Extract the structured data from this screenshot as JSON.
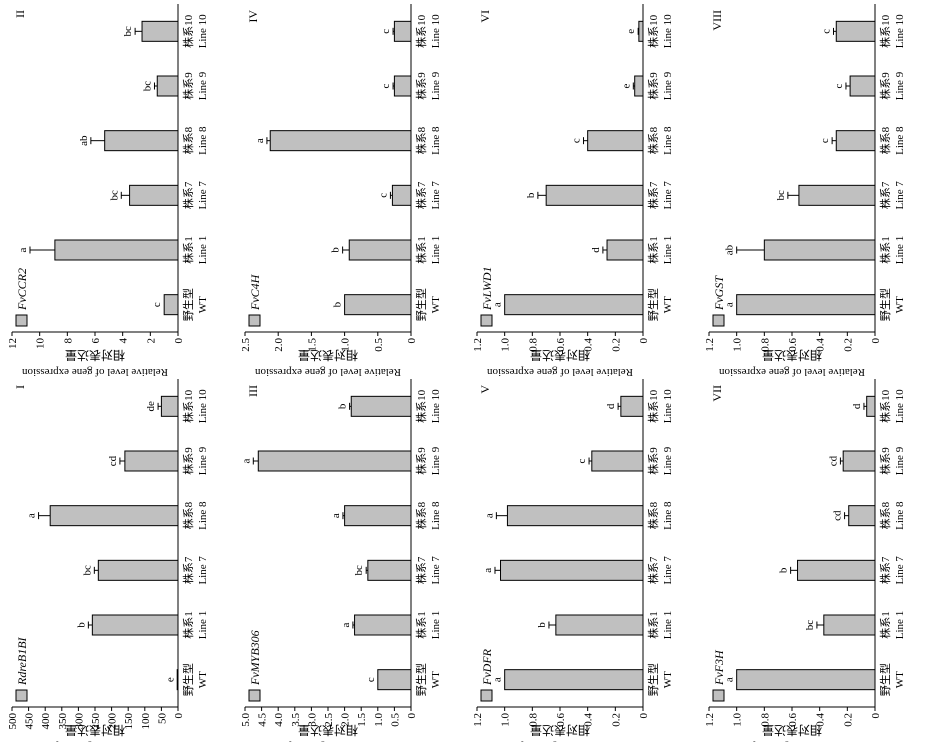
{
  "style": {
    "bar_fill": "#c0c0c0",
    "bar_stroke": "#000000",
    "axis_color": "#000000"
  },
  "chart_data": [
    {
      "type": "bar",
      "panel": "I",
      "categories": [
        [
          "野生型",
          "WT"
        ],
        [
          "株系1",
          "Line 1"
        ],
        [
          "株系7",
          "Line 7"
        ],
        [
          "株系8",
          "Line 8"
        ],
        [
          "株系9",
          "Line 9"
        ],
        [
          "株系10",
          "Line 10"
        ]
      ],
      "series": [
        {
          "name": "RdreB1BI",
          "values": [
            1,
            258,
            240,
            385,
            160,
            50
          ],
          "errors": [
            0,
            12,
            12,
            35,
            15,
            10
          ],
          "letters": [
            "e",
            "b",
            "bc",
            "a",
            "cd",
            "de"
          ]
        }
      ],
      "ylabel": "Relative level of gene expression",
      "ylabel_cn": "相对表达量",
      "ylim": [
        0,
        500
      ],
      "yticks": [
        0,
        50,
        100,
        150,
        200,
        250,
        300,
        350,
        400,
        450,
        500
      ]
    },
    {
      "type": "bar",
      "panel": "II",
      "categories": [
        [
          "野生型",
          "WT"
        ],
        [
          "株系1",
          "Line 1"
        ],
        [
          "株系7",
          "Line 7"
        ],
        [
          "株系8",
          "Line 8"
        ],
        [
          "株系9",
          "Line 9"
        ],
        [
          "株系10",
          "Line 10"
        ]
      ],
      "series": [
        {
          "name": "FvCCR2",
          "values": [
            1.0,
            8.9,
            3.5,
            5.3,
            1.5,
            2.6
          ],
          "errors": [
            0,
            1.8,
            0.6,
            1.0,
            0.2,
            0.5
          ],
          "letters": [
            "c",
            "a",
            "bc",
            "ab",
            "bc",
            "bc"
          ]
        }
      ],
      "ylabel": "Relative level of gene expression",
      "ylabel_cn": "相对表达量",
      "ylim": [
        0,
        12
      ],
      "yticks": [
        0,
        2,
        4,
        6,
        8,
        10,
        12
      ]
    },
    {
      "type": "bar",
      "panel": "III",
      "categories": [
        [
          "野生型",
          "WT"
        ],
        [
          "株系1",
          "Line 1"
        ],
        [
          "株系7",
          "Line 7"
        ],
        [
          "株系8",
          "Line 8"
        ],
        [
          "株系9",
          "Line 9"
        ],
        [
          "株系10",
          "Line 10"
        ]
      ],
      "series": [
        {
          "name": "FvMYB306",
          "values": [
            1.0,
            1.7,
            1.3,
            2.0,
            4.6,
            1.8
          ],
          "errors": [
            0,
            0.05,
            0.05,
            0.05,
            0.15,
            0.05
          ],
          "letters": [
            "c",
            "a",
            "bc",
            "a",
            "a",
            "b"
          ]
        }
      ],
      "ylabel": "Relative level of gene expression",
      "ylabel_cn": "相对表达量",
      "ylim": [
        0,
        5.0
      ],
      "yticks": [
        0,
        0.5,
        1.0,
        1.5,
        2.0,
        2.5,
        3.0,
        3.5,
        4.0,
        4.5,
        5.0
      ],
      "ytick_labels": [
        "0",
        "0.5",
        "1.0",
        "1.5",
        "2.0",
        "2.5",
        "3.0",
        "3.5",
        "4.0",
        "4.5",
        "5.0"
      ]
    },
    {
      "type": "bar",
      "panel": "IV",
      "categories": [
        [
          "野生型",
          "WT"
        ],
        [
          "株系1",
          "Line 1"
        ],
        [
          "株系7",
          "Line 7"
        ],
        [
          "株系8",
          "Line 8"
        ],
        [
          "株系9",
          "Line 9"
        ],
        [
          "株系10",
          "Line 10"
        ]
      ],
      "series": [
        {
          "name": "FvC4H",
          "values": [
            1.0,
            0.93,
            0.28,
            2.12,
            0.25,
            0.25
          ],
          "errors": [
            0,
            0.1,
            0.03,
            0.05,
            0.02,
            0.02
          ],
          "letters": [
            "b",
            "b",
            "c",
            "a",
            "c",
            "c"
          ]
        }
      ],
      "ylabel": "Relative level of gene expression",
      "ylabel_cn": "相对表达量",
      "ylim": [
        0,
        2.5
      ],
      "yticks": [
        0,
        0.5,
        1.0,
        1.5,
        2.0,
        2.5
      ],
      "ytick_labels": [
        "0",
        "0.5",
        "1.0",
        "1.5",
        "2.0",
        "2.5"
      ]
    },
    {
      "type": "bar",
      "panel": "V",
      "categories": [
        [
          "野生型",
          "WT"
        ],
        [
          "株系1",
          "Line 1"
        ],
        [
          "株系7",
          "Line 7"
        ],
        [
          "株系8",
          "Line 8"
        ],
        [
          "株系9",
          "Line 9"
        ],
        [
          "株系10",
          "Line 10"
        ]
      ],
      "series": [
        {
          "name": "FvDFR",
          "values": [
            1.0,
            0.63,
            1.03,
            0.98,
            0.37,
            0.16
          ],
          "errors": [
            0,
            0.05,
            0.04,
            0.08,
            0.02,
            0.02
          ],
          "letters": [
            "a",
            "b",
            "a",
            "a",
            "c",
            "d"
          ]
        }
      ],
      "ylabel": "Relative level of gene expression",
      "ylabel_cn": "相对表达量",
      "ylim": [
        0,
        1.2
      ],
      "yticks": [
        0,
        0.2,
        0.4,
        0.6,
        0.8,
        1.0,
        1.2
      ],
      "ytick_labels": [
        "0",
        "0.2",
        "0.4",
        "0.6",
        "0.8",
        "1.0",
        "1.2"
      ]
    },
    {
      "type": "bar",
      "panel": "VI",
      "categories": [
        [
          "野生型",
          "WT"
        ],
        [
          "株系1",
          "Line 1"
        ],
        [
          "株系7",
          "Line 7"
        ],
        [
          "株系8",
          "Line 8"
        ],
        [
          "株系9",
          "Line 9"
        ],
        [
          "株系10",
          "Line 10"
        ]
      ],
      "series": [
        {
          "name": "FvLWD1",
          "values": [
            1.0,
            0.26,
            0.7,
            0.4,
            0.06,
            0.03
          ],
          "errors": [
            0,
            0.03,
            0.06,
            0.03,
            0.01,
            0.005
          ],
          "letters": [
            "a",
            "d",
            "b",
            "c",
            "e",
            "e"
          ]
        }
      ],
      "ylabel": "Relative level of gene expression",
      "ylabel_cn": "相对表达量",
      "ylim": [
        0,
        1.2
      ],
      "yticks": [
        0,
        0.2,
        0.4,
        0.6,
        0.8,
        1.0,
        1.2
      ],
      "ytick_labels": [
        "0",
        "0.2",
        "0.4",
        "0.6",
        "0.8",
        "1.0",
        "1.2"
      ]
    },
    {
      "type": "bar",
      "panel": "VII",
      "categories": [
        [
          "野生型",
          "WT"
        ],
        [
          "株系1",
          "Line 1"
        ],
        [
          "株系7",
          "Line 7"
        ],
        [
          "株系8",
          "Line 8"
        ],
        [
          "株系9",
          "Line 9"
        ],
        [
          "株系10",
          "Line 10"
        ]
      ],
      "series": [
        {
          "name": "FvF3H",
          "values": [
            1.0,
            0.37,
            0.56,
            0.19,
            0.23,
            0.06
          ],
          "errors": [
            0,
            0.05,
            0.05,
            0.03,
            0.02,
            0.02
          ],
          "letters": [
            "a",
            "bc",
            "b",
            "cd",
            "cd",
            "d"
          ]
        }
      ],
      "ylabel": "Relative level of gene expression",
      "ylabel_cn": "相对表达量",
      "ylim": [
        0,
        1.2
      ],
      "yticks": [
        0,
        0.2,
        0.4,
        0.6,
        0.8,
        1.0,
        1.2
      ],
      "ytick_labels": [
        "0",
        "0.2",
        "0.4",
        "0.6",
        "0.8",
        "1.0",
        "1.2"
      ]
    },
    {
      "type": "bar",
      "panel": "VIII",
      "categories": [
        [
          "野生型",
          "WT"
        ],
        [
          "株系1",
          "Line 1"
        ],
        [
          "株系7",
          "Line 7"
        ],
        [
          "株系8",
          "Line 8"
        ],
        [
          "株系9",
          "Line 9"
        ],
        [
          "株系10",
          "Line 10"
        ]
      ],
      "series": [
        {
          "name": "FvGST",
          "values": [
            1.0,
            0.8,
            0.55,
            0.28,
            0.18,
            0.28
          ],
          "errors": [
            0,
            0.2,
            0.08,
            0.03,
            0.03,
            0.02
          ],
          "letters": [
            "a",
            "ab",
            "bc",
            "c",
            "c",
            "c"
          ]
        }
      ],
      "ylabel": "Relative level of gene expression",
      "ylabel_cn": "相对表达量",
      "ylim": [
        0,
        1.2
      ],
      "yticks": [
        0,
        0.2,
        0.4,
        0.6,
        0.8,
        1.0,
        1.2
      ],
      "ytick_labels": [
        "0",
        "0.2",
        "0.4",
        "0.6",
        "0.8",
        "1.0",
        "1.2"
      ]
    }
  ]
}
